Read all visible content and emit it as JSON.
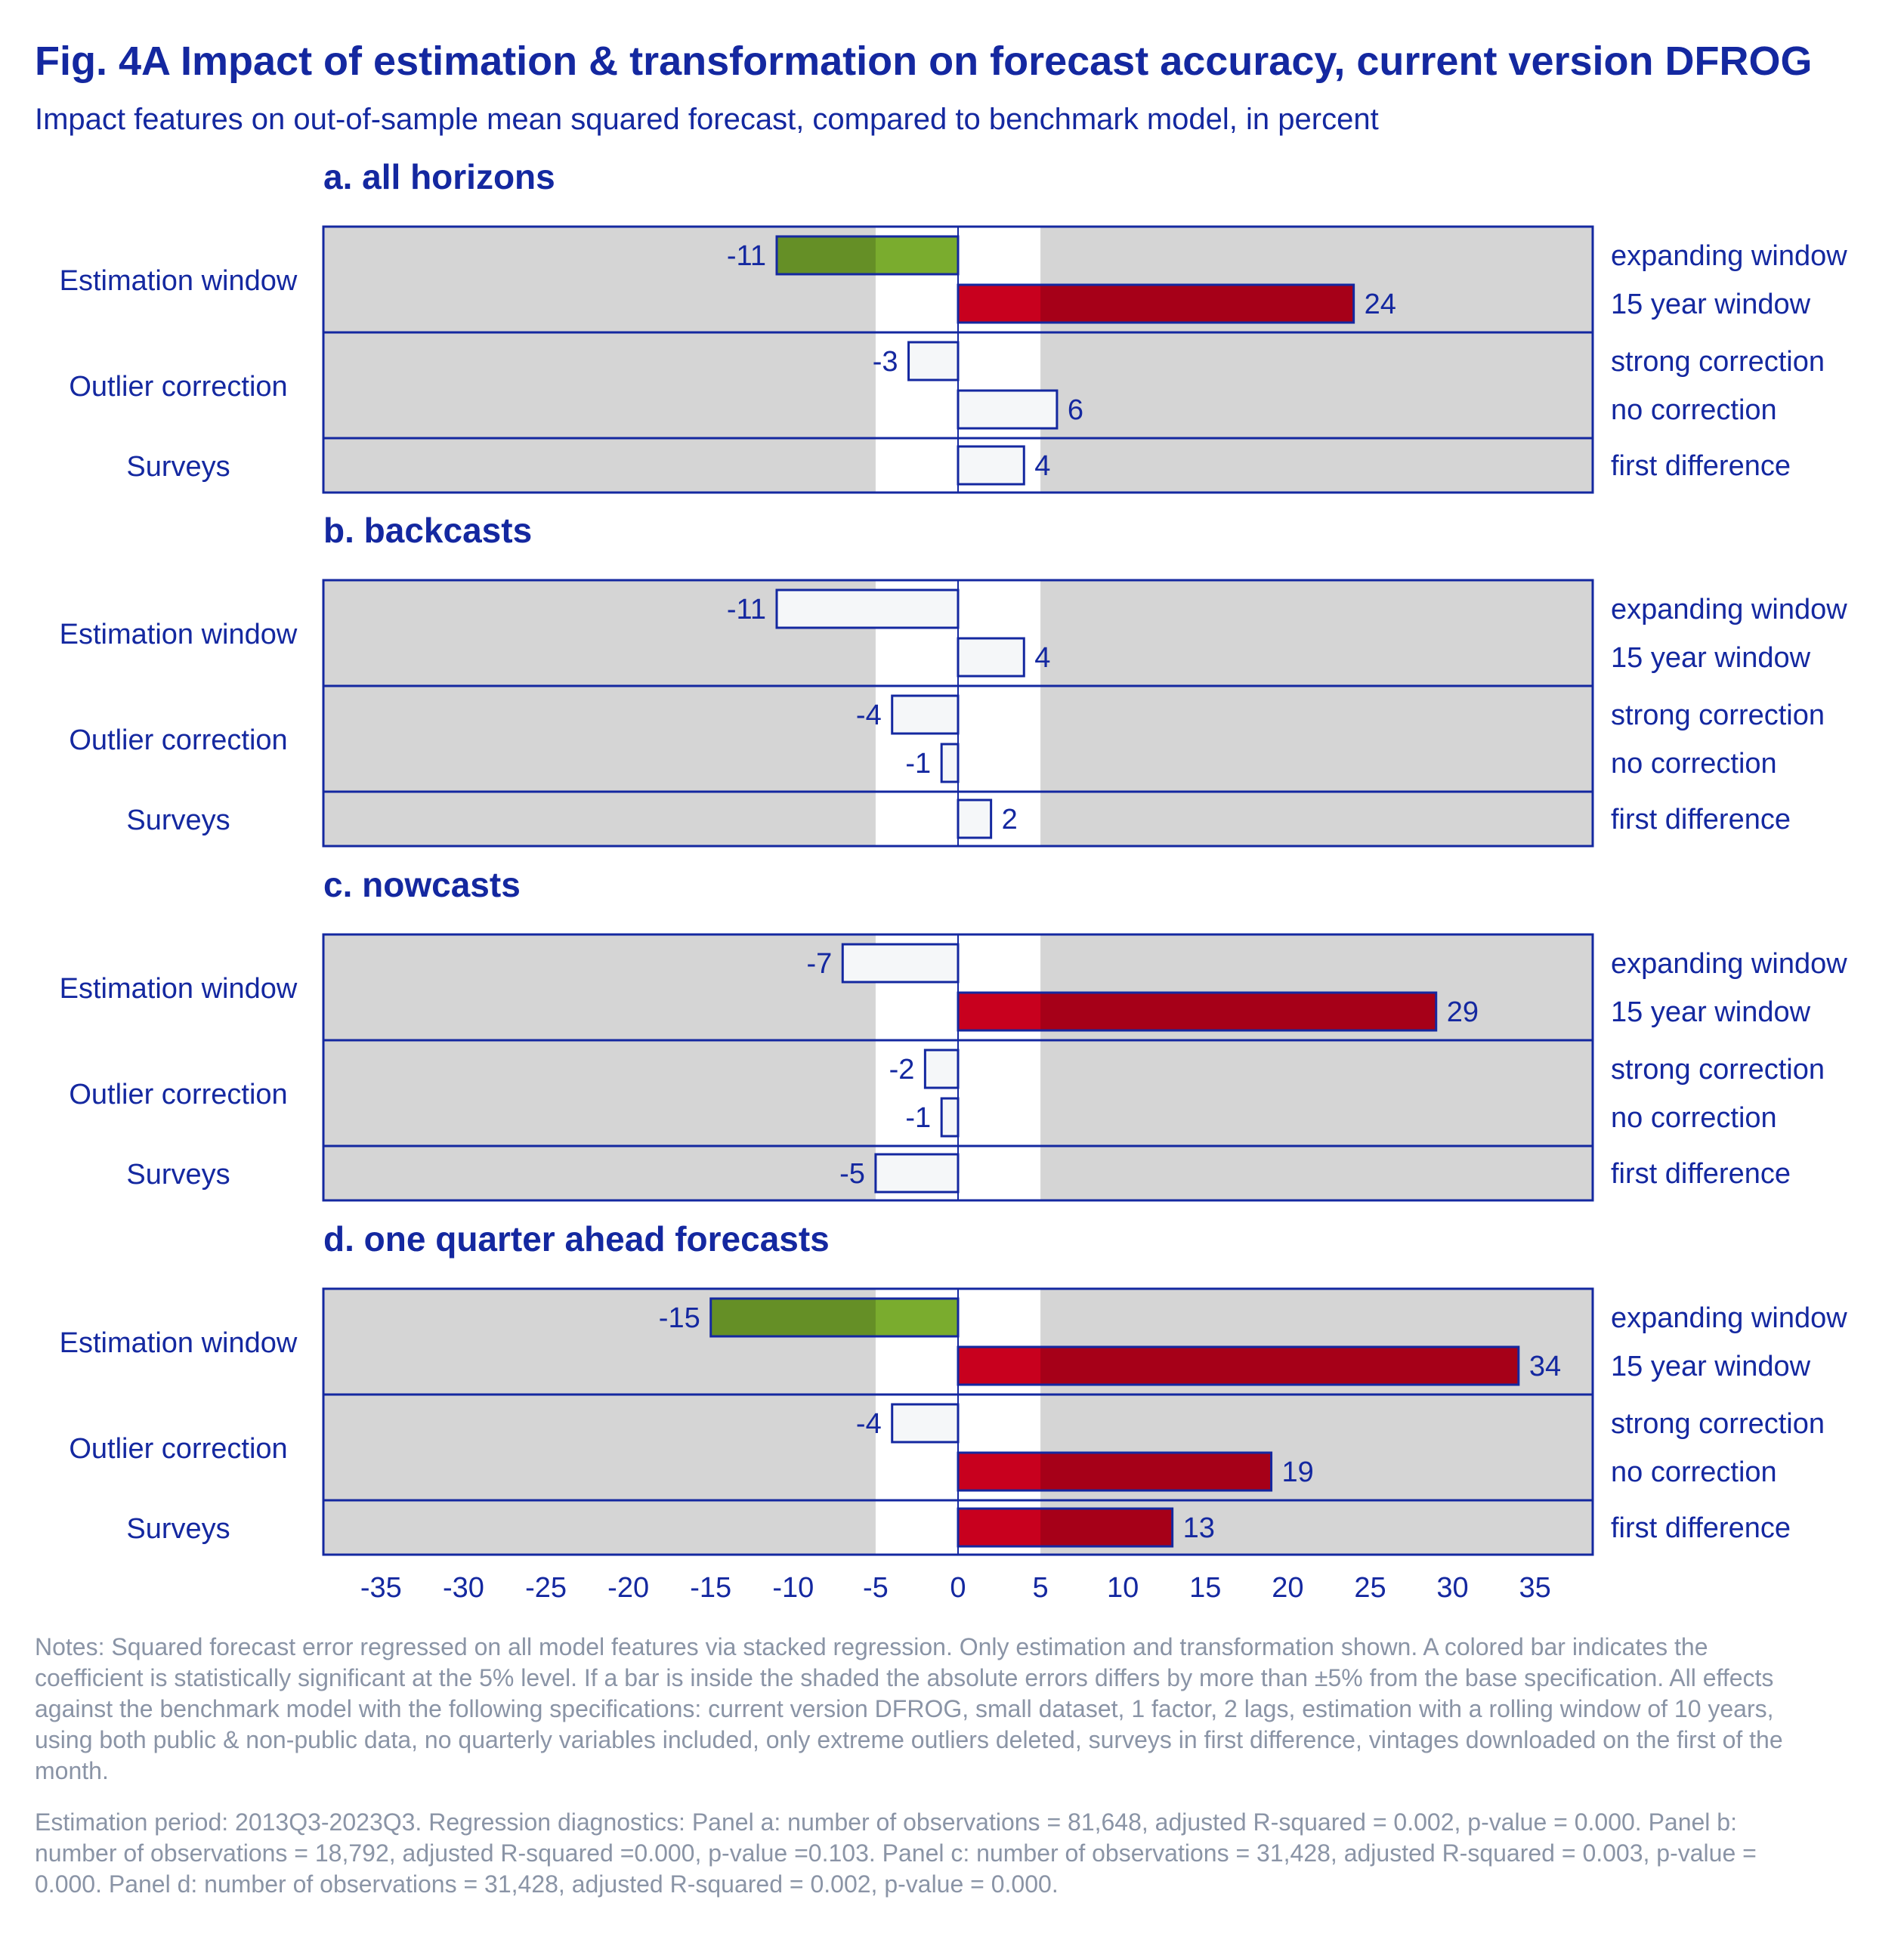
{
  "title": "Fig. 4A Impact of estimation & transformation on forecast accuracy, current version DFROG",
  "subtitle": "Impact features on out-of-sample mean squared forecast, compared to benchmark model, in percent",
  "colors": {
    "text": "#1428a0",
    "panel_bg": "#d5d5d5",
    "band": "#ffffff",
    "bar_outline": "#1428a0",
    "bar_insignificant": "#f5f7f9",
    "bar_negative_significant": "#7aac2e",
    "bar_positive_significant": "#c8001e",
    "notes_text": "#8a94a6"
  },
  "chart_data": {
    "type": "bar",
    "orientation": "horizontal",
    "xlim": [
      -38.5,
      38.5
    ],
    "xticks": [
      -35,
      -30,
      -25,
      -20,
      -15,
      -10,
      -5,
      0,
      5,
      10,
      15,
      20,
      25,
      30,
      35
    ],
    "shaded_band": [
      -5,
      5
    ],
    "groups": [
      {
        "label": "Estimation window",
        "categories": [
          "expanding window",
          "15 year window"
        ]
      },
      {
        "label": "Outlier correction",
        "categories": [
          "strong correction",
          "no correction"
        ]
      },
      {
        "label": "Surveys",
        "categories": [
          "first difference"
        ]
      }
    ],
    "panels": [
      {
        "title": "a. all horizons",
        "values": [
          -11,
          24,
          -3,
          6,
          4
        ],
        "significant": [
          true,
          true,
          false,
          false,
          false
        ]
      },
      {
        "title": "b. backcasts",
        "values": [
          -11,
          4,
          -4,
          -1,
          2
        ],
        "significant": [
          false,
          false,
          false,
          false,
          false
        ]
      },
      {
        "title": "c. nowcasts",
        "values": [
          -7,
          29,
          -2,
          -1,
          -5
        ],
        "significant": [
          false,
          true,
          false,
          false,
          false
        ]
      },
      {
        "title": "d. one quarter ahead forecasts",
        "values": [
          -15,
          34,
          -4,
          19,
          13
        ],
        "significant": [
          true,
          true,
          false,
          true,
          true
        ]
      }
    ]
  },
  "notes": "Notes: Squared forecast error regressed on all model features via stacked regression. Only estimation and transformation shown. A colored bar indicates the coefficient is statistically significant at the 5% level. If a bar is inside the shaded the absolute errors differs by more than ±5% from the base specification. All effects against the benchmark model with the following specifications: current version DFROG, small dataset, 1 factor, 2 lags, estimation with a rolling window of 10 years, using both public & non-public data, no quarterly variables included, only extreme outliers deleted, surveys in first difference, vintages downloaded on the first of the month.",
  "estimation_note": "Estimation period: 2013Q3-2023Q3. Regression diagnostics: Panel a: number of observations = 81,648, adjusted R-squared = 0.002, p-value = 0.000. Panel b: number of observations = 18,792, adjusted R-squared =0.000, p-value =0.103. Panel c: number of observations = 31,428, adjusted R-squared = 0.003, p-value = 0.000. Panel d: number of observations = 31,428, adjusted R-squared = 0.002, p-value = 0.000."
}
